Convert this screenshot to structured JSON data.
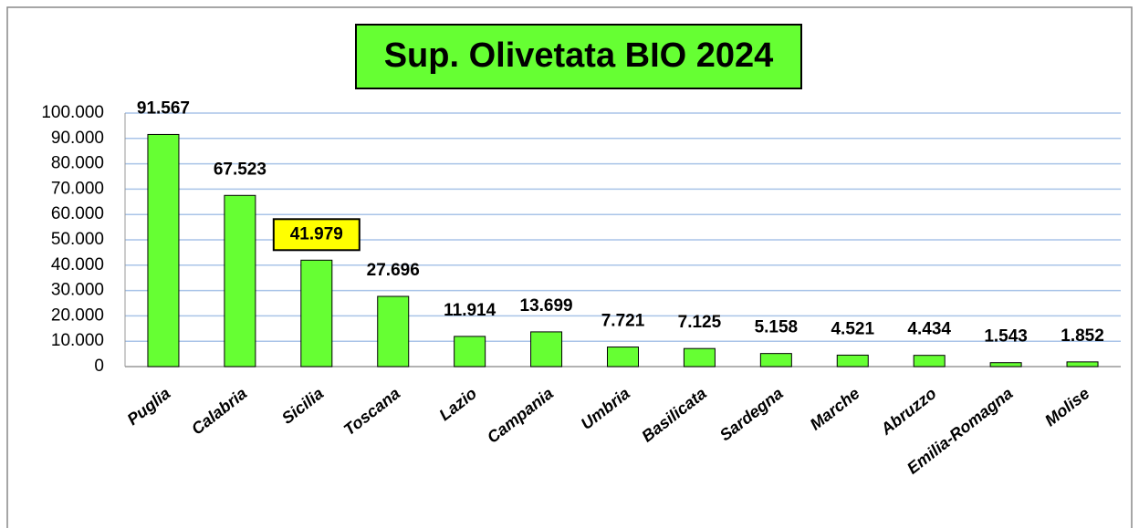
{
  "chart_data": {
    "type": "bar",
    "title": "Sup. Olivetata BIO 2024",
    "categories": [
      "Puglia",
      "Calabria",
      "Sicilia",
      "Toscana",
      "Lazio",
      "Campania",
      "Umbria",
      "Basilicata",
      "Sardegna",
      "Marche",
      "Abruzzo",
      "Emilia-Romagna",
      "Molise"
    ],
    "values": [
      91567,
      67523,
      41979,
      27696,
      11914,
      13699,
      7721,
      7125,
      5158,
      4521,
      4434,
      1543,
      1852
    ],
    "value_labels": [
      "91.567",
      "67.523",
      "41.979",
      "27.696",
      "11.914",
      "13.699",
      "7.721",
      "7.125",
      "5.158",
      "4.521",
      "4.434",
      "1.543",
      "1.852"
    ],
    "color": "#66ff33",
    "title_color": "#66ff33",
    "highlight": "Sicilia",
    "highlight_color": "#ffff00",
    "ylim": [
      0,
      100000
    ],
    "yticks": [
      0,
      {
        "value": 10000,
        "label": "10.000"
      },
      {
        "value": 20000,
        "label": "20.000"
      },
      {
        "value": 30000,
        "label": "30.000"
      },
      {
        "value": 40000,
        "label": "40.000"
      },
      {
        "value": 50000,
        "label": "50.000"
      },
      {
        "value": 60000,
        "label": "60.000"
      },
      {
        "value": 70000,
        "label": "70.000"
      },
      {
        "value": 80000,
        "label": "80.000"
      },
      {
        "value": 90000,
        "label": "90.000"
      },
      {
        "value": 100000,
        "label": "100.000"
      }
    ],
    "grid": true
  }
}
